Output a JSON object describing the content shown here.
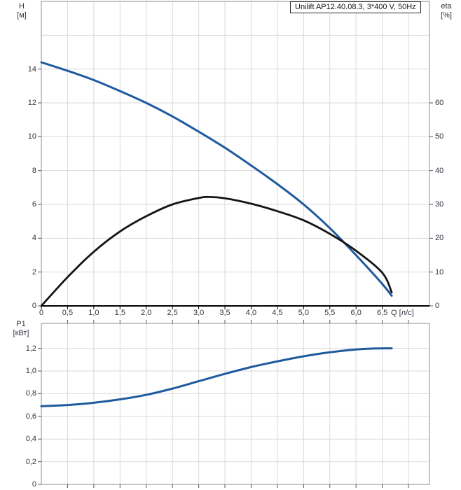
{
  "title_box": {
    "text": "Unilift AP12.40.08.3, 3*400 V, 50Hz"
  },
  "axes_labels": {
    "head_left_line1": "H",
    "head_left_line2": "[м]",
    "head_right_line1": "eta",
    "head_right_line2": "[%]",
    "power_line1": "P1",
    "power_line2": "[кВт]",
    "flow": "Q [л/с]"
  },
  "colors": {
    "curve_blue": "#1f5a9e",
    "curve_black": "#141414",
    "grid": "#d9d9d9",
    "frame": "#8c8c8c",
    "axis": "#000000",
    "tick": "#555555",
    "text": "#333340"
  },
  "chart_data": [
    {
      "type": "line",
      "title": "Unilift AP12.40.08.3, 3*400 V, 50Hz",
      "xlabel": "Q [л/с]",
      "ylabel_left": "H [м]",
      "ylabel_right": "eta [%]",
      "xlim": [
        0,
        7.4
      ],
      "ylim_left": [
        0,
        18
      ],
      "ylim_right": [
        0,
        90
      ],
      "grid": true,
      "x_tick_values": [
        0,
        0.5,
        1,
        1.5,
        2,
        2.5,
        3,
        3.5,
        4,
        4.5,
        5,
        5.5,
        6,
        6.5
      ],
      "x_tick_labels": [
        "0",
        "0,5",
        "1,0",
        "1,5",
        "2,0",
        "2,5",
        "3,0",
        "3,5",
        "4,0",
        "4,5",
        "5,0",
        "5,5",
        "6,0",
        "6,5"
      ],
      "y_left_tick_values": [
        0,
        2,
        4,
        6,
        8,
        10,
        12,
        14
      ],
      "y_left_tick_labels": [
        "0",
        "2",
        "4",
        "6",
        "8",
        "10",
        "12",
        "14"
      ],
      "y_right_tick_values": [
        0,
        10,
        20,
        30,
        40,
        50,
        60
      ],
      "y_right_tick_labels": [
        "0",
        "10",
        "20",
        "30",
        "40",
        "50",
        "60"
      ],
      "grid_x_step": 0.5,
      "grid_x_max": 7,
      "grid_y_left_step": 2,
      "grid_y_left_max": 16,
      "series": [
        {
          "name": "H",
          "axis": "left",
          "color": "#1f5a9e",
          "width": 3,
          "x": [
            0,
            0.5,
            1,
            1.5,
            2,
            2.5,
            3,
            3.5,
            4,
            4.5,
            5,
            5.5,
            6,
            6.5,
            6.68
          ],
          "y": [
            14.4,
            13.9,
            13.35,
            12.7,
            12.0,
            11.2,
            10.3,
            9.35,
            8.3,
            7.2,
            6.0,
            4.6,
            3.0,
            1.3,
            0.6
          ]
        },
        {
          "name": "eta",
          "axis": "right",
          "color": "#141414",
          "width": 2.8,
          "x": [
            0,
            0.5,
            1,
            1.5,
            2,
            2.5,
            3,
            3.2,
            3.5,
            4,
            4.5,
            5,
            5.5,
            6,
            6.5,
            6.68
          ],
          "y": [
            0,
            8.5,
            16,
            22,
            26.5,
            30,
            31.9,
            32.2,
            31.8,
            30.2,
            28,
            25.3,
            21.3,
            16.3,
            9.8,
            4.0
          ]
        }
      ]
    },
    {
      "type": "line",
      "title": "",
      "xlabel": "Q [л/с]",
      "ylabel_left": "P1 [кВт]",
      "xlim": [
        0,
        7.4
      ],
      "ylim_left": [
        0,
        1.42
      ],
      "grid": true,
      "x_tick_values": [],
      "x_tick_labels": [],
      "y_left_tick_values": [
        0,
        0.2,
        0.4,
        0.6,
        0.8,
        1.0,
        1.2
      ],
      "y_left_tick_labels": [
        "0",
        "0,2",
        "0,4",
        "0,6",
        "0,8",
        "1,0",
        "1,2"
      ],
      "grid_x_step": 0.5,
      "grid_x_max": 7,
      "grid_y_left_step": 0.2,
      "grid_y_left_max": 1.2,
      "series": [
        {
          "name": "P1",
          "axis": "left",
          "color": "#1f5a9e",
          "width": 3,
          "x": [
            0,
            0.5,
            1,
            1.5,
            2,
            2.5,
            3,
            3.5,
            4,
            4.5,
            5,
            5.5,
            6,
            6.3,
            6.68
          ],
          "y": [
            0.69,
            0.7,
            0.72,
            0.75,
            0.79,
            0.845,
            0.91,
            0.975,
            1.035,
            1.085,
            1.13,
            1.165,
            1.19,
            1.198,
            1.2
          ]
        }
      ]
    }
  ]
}
